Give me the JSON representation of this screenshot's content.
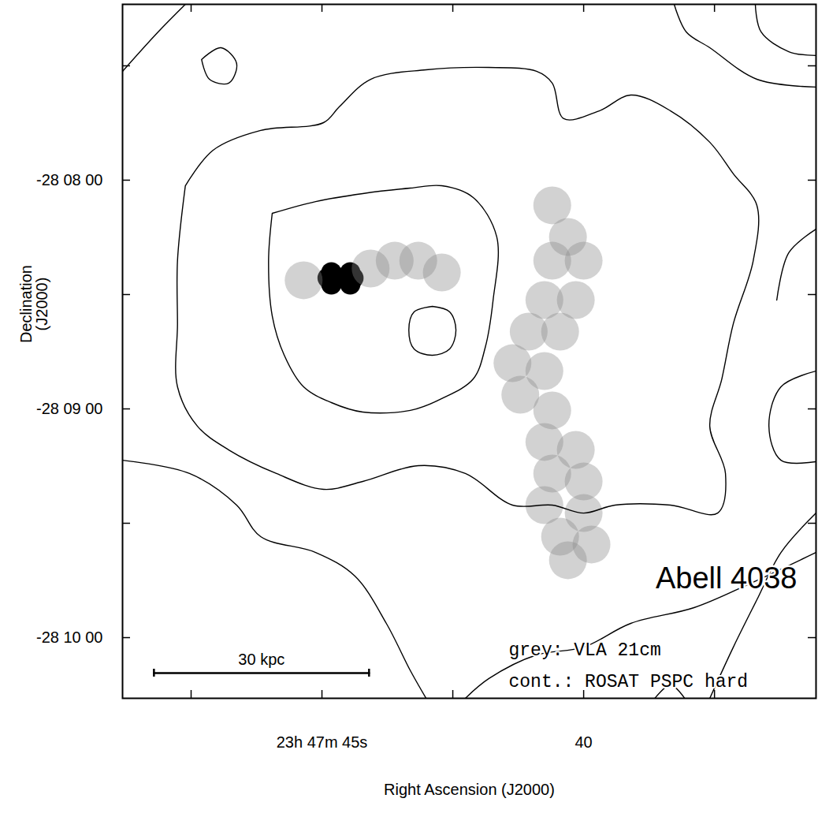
{
  "chart_data": {
    "type": "contour_overlay",
    "title": "Abell 4038",
    "xlabel": "Right Ascension (J2000)",
    "ylabel": "Declination (J2000)",
    "xlim": [
      48.81,
      35.56
    ],
    "ylim": [
      -28.17109,
      -28.12052
    ],
    "xticks": [
      {
        "value": 45,
        "label": "23h 47m 45s"
      },
      {
        "value": 40,
        "label": "40"
      }
    ],
    "xminor_ticks": [
      47.5,
      42.5,
      37.5
    ],
    "yticks": [
      {
        "value": -28.133333,
        "label": "-28 08 00"
      },
      {
        "value": -28.15,
        "label": "-28 09 00"
      },
      {
        "value": -28.166667,
        "label": "-28 10 00"
      }
    ],
    "yminor_ticks": [
      -28.125,
      -28.141667,
      -28.158333
    ],
    "annotations": [
      "grey: VLA 21cm",
      "cont.: ROSAT PSPC hard"
    ],
    "scale_bar": {
      "label": "30 kpc",
      "x": [
        48.21,
        44.1
      ],
      "y": -28.16925
    },
    "radio": [
      {
        "color": "#000000",
        "points": [
          [
            44.89,
            -28.14046
          ],
          [
            44.64,
            -28.14046
          ],
          [
            44.4,
            -28.14046
          ],
          [
            44.82,
            -28.14006
          ],
          [
            44.46,
            -28.14006
          ],
          [
            44.82,
            -28.14092
          ],
          [
            44.46,
            -28.14092
          ]
        ]
      },
      {
        "color": "#8a8a8a",
        "points": [
          [
            45.35,
            -28.14063
          ],
          [
            44.07,
            -28.13977
          ],
          [
            43.61,
            -28.1392
          ],
          [
            43.16,
            -28.1392
          ],
          [
            42.71,
            -28.14006
          ],
          [
            40.6,
            -28.13517
          ],
          [
            40.3,
            -28.13747
          ],
          [
            40.6,
            -28.1392
          ],
          [
            40.0,
            -28.1392
          ],
          [
            40.75,
            -28.14207
          ],
          [
            40.15,
            -28.14207
          ],
          [
            41.05,
            -28.14437
          ],
          [
            40.45,
            -28.14437
          ],
          [
            41.36,
            -28.14667
          ],
          [
            40.75,
            -28.14724
          ],
          [
            41.21,
            -28.14897
          ],
          [
            40.6,
            -28.15011
          ],
          [
            40.75,
            -28.15241
          ],
          [
            40.15,
            -28.15299
          ],
          [
            40.6,
            -28.15471
          ],
          [
            40.0,
            -28.15529
          ],
          [
            40.75,
            -28.15701
          ],
          [
            40.0,
            -28.15759
          ],
          [
            40.45,
            -28.15931
          ],
          [
            39.85,
            -28.15988
          ],
          [
            40.3,
            -28.16103
          ]
        ]
      }
    ],
    "contours": {
      "color": "#000000",
      "lines": [
        [
          [
            45.95,
            -28.13575
          ],
          [
            45.12,
            -28.13489
          ],
          [
            44.22,
            -28.13431
          ],
          [
            43.31,
            -28.13391
          ],
          [
            42.71,
            -28.13374
          ],
          [
            42.11,
            -28.1346
          ],
          [
            41.66,
            -28.13747
          ],
          [
            41.73,
            -28.14207
          ],
          [
            41.88,
            -28.14552
          ],
          [
            42.11,
            -28.14782
          ],
          [
            42.71,
            -28.14925
          ],
          [
            43.31,
            -28.15011
          ],
          [
            44.22,
            -28.15023
          ],
          [
            44.82,
            -28.14954
          ],
          [
            45.35,
            -28.14839
          ],
          [
            45.72,
            -28.14609
          ],
          [
            45.95,
            -28.14322
          ],
          [
            46.02,
            -28.1392
          ],
          [
            45.95,
            -28.13575
          ]
        ],
        [
          [
            42.89,
            -28.14253
          ],
          [
            42.56,
            -28.14293
          ],
          [
            42.44,
            -28.14425
          ],
          [
            42.56,
            -28.14563
          ],
          [
            42.89,
            -28.14609
          ],
          [
            43.24,
            -28.14563
          ],
          [
            43.34,
            -28.14425
          ],
          [
            43.24,
            -28.14293
          ],
          [
            42.89,
            -28.14253
          ]
        ],
        [
          [
            47.61,
            -28.13374
          ],
          [
            47.08,
            -28.13115
          ],
          [
            46.17,
            -28.12971
          ],
          [
            44.97,
            -28.12914
          ],
          [
            44.67,
            -28.12799
          ],
          [
            44.07,
            -28.12598
          ],
          [
            43.01,
            -28.12529
          ],
          [
            41.81,
            -28.12512
          ],
          [
            40.9,
            -28.1254
          ],
          [
            40.6,
            -28.12626
          ],
          [
            40.38,
            -28.12885
          ],
          [
            39.7,
            -28.12828
          ],
          [
            39.1,
            -28.12713
          ],
          [
            38.34,
            -28.12828
          ],
          [
            37.59,
            -28.13057
          ],
          [
            37.14,
            -28.13287
          ],
          [
            36.69,
            -28.13517
          ],
          [
            36.76,
            -28.1392
          ],
          [
            37.14,
            -28.14379
          ],
          [
            37.36,
            -28.14782
          ],
          [
            37.59,
            -28.15126
          ],
          [
            37.29,
            -28.15471
          ],
          [
            37.44,
            -28.15759
          ],
          [
            38.34,
            -28.15701
          ],
          [
            39.4,
            -28.15701
          ],
          [
            40.0,
            -28.15759
          ],
          [
            40.6,
            -28.15701
          ],
          [
            41.36,
            -28.15701
          ],
          [
            42.26,
            -28.15471
          ],
          [
            43.16,
            -28.15414
          ],
          [
            44.22,
            -28.15529
          ],
          [
            44.97,
            -28.15586
          ],
          [
            45.87,
            -28.15471
          ],
          [
            46.78,
            -28.15299
          ],
          [
            47.38,
            -28.15126
          ],
          [
            47.76,
            -28.14839
          ],
          [
            47.76,
            -28.14379
          ],
          [
            47.76,
            -28.1392
          ],
          [
            47.61,
            -28.13374
          ]
        ],
        [
          [
            48.81,
            -28.15374
          ],
          [
            47.53,
            -28.15471
          ],
          [
            46.63,
            -28.15701
          ],
          [
            46.17,
            -28.15931
          ],
          [
            45.12,
            -28.16046
          ],
          [
            44.37,
            -28.16218
          ],
          [
            43.77,
            -28.16563
          ],
          [
            43.31,
            -28.16908
          ],
          [
            43.01,
            -28.17109
          ]
        ],
        [
          [
            48.81,
            -28.1254
          ],
          [
            48.13,
            -28.12253
          ],
          [
            47.61,
            -28.12052
          ]
        ],
        [
          [
            47.3,
            -28.12454
          ],
          [
            46.93,
            -28.12368
          ],
          [
            46.63,
            -28.12483
          ],
          [
            46.78,
            -28.12626
          ],
          [
            47.15,
            -28.12598
          ],
          [
            47.3,
            -28.12454
          ]
        ],
        [
          [
            38.27,
            -28.12052
          ],
          [
            38.04,
            -28.12253
          ],
          [
            37.59,
            -28.12368
          ],
          [
            36.69,
            -28.12598
          ],
          [
            35.56,
            -28.12655
          ]
        ],
        [
          [
            36.72,
            -28.12052
          ],
          [
            36.61,
            -28.12253
          ],
          [
            36.08,
            -28.12397
          ],
          [
            35.56,
            -28.12425
          ]
        ],
        [
          [
            35.56,
            -28.1369
          ],
          [
            36.08,
            -28.13862
          ],
          [
            36.31,
            -28.14207
          ]
        ],
        [
          [
            35.56,
            -28.14724
          ],
          [
            36.23,
            -28.14839
          ],
          [
            36.46,
            -28.15126
          ],
          [
            36.23,
            -28.15374
          ],
          [
            35.56,
            -28.15385
          ]
        ],
        [
          [
            35.56,
            -28.15759
          ],
          [
            36.23,
            -28.16046
          ],
          [
            36.69,
            -28.16391
          ],
          [
            37.14,
            -28.16736
          ],
          [
            37.59,
            -28.17109
          ]
        ],
        [
          [
            42.26,
            -28.17109
          ],
          [
            41.81,
            -28.16965
          ],
          [
            40.9,
            -28.16793
          ],
          [
            40.0,
            -28.16736
          ],
          [
            39.1,
            -28.16563
          ],
          [
            37.89,
            -28.16448
          ],
          [
            36.84,
            -28.16276
          ],
          [
            35.56,
            -28.16046
          ]
        ],
        [
          [
            38.64,
            -28.17109
          ],
          [
            38.34,
            -28.17011
          ],
          [
            38.07,
            -28.17109
          ]
        ]
      ]
    }
  }
}
